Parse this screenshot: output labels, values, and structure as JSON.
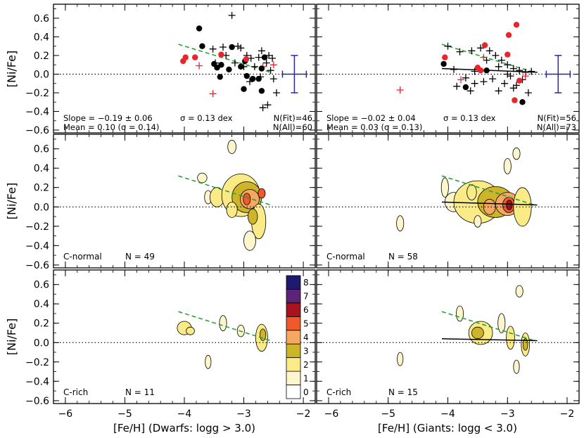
{
  "figure": {
    "xlabel_left": "[Fe/H] (Dwarfs: logg > 3.0)",
    "xlabel_right": "[Fe/H] (Giants: logg < 3.0)",
    "ylabel": "[Ni/Fe]",
    "x_ticks": [
      "−6",
      "−5",
      "−4",
      "−3",
      "−2"
    ],
    "y_ticks": [
      "−0.6",
      "−0.4",
      "−0.2",
      "0.0",
      "0.2",
      "0.4",
      "0.6"
    ],
    "colorbar_ticks": [
      "0",
      "1",
      "2",
      "3",
      "4",
      "5",
      "6",
      "7",
      "8"
    ]
  },
  "colors": {
    "black_points": "#000000",
    "red_points": "#e8242c",
    "fit_line_dashed": "#2e9e3a",
    "fit_line_solid": "#000000",
    "errorbar": "#2a2aa0",
    "levels": [
      "#ffffff",
      "#fdf6cc",
      "#fbeb86",
      "#cdb52a",
      "#f4a860",
      "#f05a2a",
      "#a8141e",
      "#5c2378",
      "#1e1a6e"
    ]
  },
  "chart_data": [
    {
      "panel": "top-left",
      "type": "scatter",
      "xlim": [
        -6.2,
        -1.8
      ],
      "ylim": [
        -0.63,
        0.75
      ],
      "stats_line1": "Slope = −0.19 ± 0.06",
      "stats_line1b": "σ = 0.13 dex",
      "stats_line2": "Mean =  0.10 (σ = 0.14)",
      "nfit": "N(Fit)=46",
      "nall": "N(All)=60",
      "fit_dashed": {
        "x": [
          -4.1,
          -2.55
        ],
        "y": [
          0.32,
          0.02
        ]
      },
      "errorbar": {
        "x": -2.15,
        "y": 0.0,
        "dx": 0.2,
        "dy": 0.2
      },
      "black_circles": [
        [
          -3.75,
          0.49
        ],
        [
          -3.7,
          0.3
        ],
        [
          -3.2,
          0.29
        ],
        [
          -3.5,
          0.11
        ],
        [
          -3.45,
          0.07
        ],
        [
          -3.38,
          0.1
        ],
        [
          -3.25,
          0.05
        ],
        [
          -3.05,
          0.08
        ],
        [
          -2.98,
          0.14
        ],
        [
          -2.95,
          -0.02
        ],
        [
          -2.85,
          -0.05
        ],
        [
          -2.7,
          0.06
        ],
        [
          -2.65,
          0.18
        ],
        [
          -2.75,
          -0.05
        ],
        [
          -3.0,
          -0.16
        ],
        [
          -2.7,
          -0.18
        ],
        [
          -3.4,
          -0.03
        ]
      ],
      "red_circles": [
        [
          -4.02,
          0.14
        ],
        [
          -3.98,
          0.18
        ],
        [
          -3.82,
          0.18
        ],
        [
          -3.38,
          0.21
        ],
        [
          -2.96,
          0.16
        ]
      ],
      "black_plus": [
        [
          -3.2,
          0.63
        ],
        [
          -3.1,
          0.3
        ],
        [
          -3.35,
          0.29
        ],
        [
          -3.52,
          0.27
        ],
        [
          -3.48,
          0.12
        ],
        [
          -3.3,
          0.2
        ],
        [
          -3.05,
          0.28
        ],
        [
          -2.95,
          0.2
        ],
        [
          -2.88,
          0.17
        ],
        [
          -2.82,
          0.08
        ],
        [
          -2.75,
          0.18
        ],
        [
          -2.7,
          0.25
        ],
        [
          -2.62,
          0.12
        ],
        [
          -2.58,
          0.2
        ],
        [
          -2.55,
          0.04
        ],
        [
          -2.5,
          -0.05
        ],
        [
          -2.45,
          -0.2
        ],
        [
          -2.6,
          -0.33
        ],
        [
          -2.68,
          -0.36
        ],
        [
          -2.52,
          0.17
        ],
        [
          -3.0,
          0.08
        ],
        [
          -3.15,
          0.12
        ],
        [
          -2.9,
          -0.08
        ],
        [
          -2.72,
          -0.03
        ]
      ],
      "red_plus": [
        [
          -3.75,
          0.09
        ],
        [
          -3.52,
          -0.21
        ],
        [
          -2.5,
          0.1
        ],
        [
          -2.68,
          0.08
        ]
      ]
    },
    {
      "panel": "top-right",
      "type": "scatter",
      "xlim": [
        -6.2,
        -1.8
      ],
      "ylim": [
        -0.63,
        0.75
      ],
      "stats_line1": "Slope = −0.02 ± 0.04",
      "stats_line1b": "σ = 0.13 dex",
      "stats_line2": "Mean =  0.03 (σ = 0.13)",
      "nfit": "N(Fit)=56",
      "nall": "N(All)=73",
      "fit_dashed": {
        "x": [
          -4.1,
          -2.55
        ],
        "y": [
          0.32,
          0.02
        ]
      },
      "fit_solid": {
        "x": [
          -4.1,
          -2.5
        ],
        "y": [
          0.06,
          0.02
        ]
      },
      "errorbar": {
        "x": -2.15,
        "y": 0.0,
        "dx": 0.2,
        "dy": 0.2
      },
      "black_circles": [
        [
          -4.07,
          0.11
        ],
        [
          -3.7,
          -0.14
        ],
        [
          -3.35,
          0.04
        ],
        [
          -2.75,
          -0.3
        ]
      ],
      "red_circles": [
        [
          -4.05,
          0.18
        ],
        [
          -3.5,
          0.07
        ],
        [
          -3.45,
          0.04
        ],
        [
          -3.38,
          0.31
        ],
        [
          -2.98,
          0.42
        ],
        [
          -3.0,
          0.21
        ],
        [
          -2.85,
          0.53
        ],
        [
          -2.8,
          -0.07
        ],
        [
          -2.88,
          -0.28
        ]
      ],
      "black_plus": [
        [
          -4.0,
          0.3
        ],
        [
          -3.8,
          0.24
        ],
        [
          -3.6,
          0.25
        ],
        [
          -3.45,
          0.28
        ],
        [
          -3.3,
          0.25
        ],
        [
          -3.2,
          0.2
        ],
        [
          -3.1,
          0.15
        ],
        [
          -3.0,
          0.1
        ],
        [
          -2.9,
          0.06
        ],
        [
          -2.8,
          0.04
        ],
        [
          -2.7,
          0.02
        ],
        [
          -2.6,
          0.03
        ],
        [
          -3.85,
          -0.13
        ],
        [
          -3.7,
          -0.04
        ],
        [
          -3.55,
          -0.1
        ],
        [
          -3.4,
          -0.08
        ],
        [
          -3.25,
          -0.05
        ],
        [
          -3.15,
          -0.18
        ],
        [
          -3.05,
          -0.1
        ],
        [
          -2.95,
          -0.02
        ],
        [
          -2.85,
          -0.12
        ],
        [
          -2.75,
          -0.06
        ],
        [
          -2.65,
          -0.2
        ],
        [
          -3.55,
          0.03
        ],
        [
          -3.35,
          0.15
        ],
        [
          -3.15,
          0.08
        ],
        [
          -3.0,
          0.0
        ],
        [
          -2.9,
          -0.15
        ],
        [
          -3.9,
          0.05
        ],
        [
          -3.62,
          -0.18
        ]
      ],
      "red_plus": [
        [
          -4.8,
          -0.17
        ],
        [
          -3.78,
          -0.06
        ],
        [
          -3.4,
          0.18
        ],
        [
          -2.7,
          -0.02
        ]
      ]
    },
    {
      "panel": "middle-left",
      "type": "heatmap",
      "label": "C-normal",
      "count": "N = 49",
      "xlim": [
        -6.2,
        -1.8
      ],
      "ylim": [
        -0.63,
        0.75
      ],
      "fit_dashed": {
        "x": [
          -4.1,
          -2.55
        ],
        "y": [
          0.32,
          0.02
        ]
      },
      "blobs": [
        [
          -3.2,
          0.62,
          0.07,
          0.07,
          1
        ],
        [
          -3.7,
          0.3,
          0.08,
          0.05,
          1
        ],
        [
          -3.6,
          0.1,
          0.06,
          0.07,
          1
        ],
        [
          -3.45,
          0.1,
          0.12,
          0.1,
          2
        ],
        [
          -3.05,
          0.12,
          0.32,
          0.22,
          2
        ],
        [
          -2.95,
          0.1,
          0.25,
          0.16,
          3
        ],
        [
          -2.9,
          0.08,
          0.16,
          0.1,
          4
        ],
        [
          -2.95,
          0.08,
          0.06,
          0.06,
          5
        ],
        [
          -2.7,
          0.14,
          0.06,
          0.05,
          5
        ],
        [
          -2.75,
          -0.15,
          0.12,
          0.18,
          2
        ],
        [
          -2.85,
          -0.1,
          0.08,
          0.08,
          3
        ],
        [
          -2.9,
          -0.35,
          0.1,
          0.1,
          1
        ],
        [
          -3.2,
          -0.03,
          0.09,
          0.08,
          2
        ]
      ]
    },
    {
      "panel": "middle-right",
      "type": "heatmap",
      "label": "C-normal",
      "count": "N = 58",
      "xlim": [
        -6.2,
        -1.8
      ],
      "ylim": [
        -0.63,
        0.75
      ],
      "fit_dashed": {
        "x": [
          -4.1,
          -2.55
        ],
        "y": [
          0.32,
          0.02
        ]
      },
      "fit_solid": {
        "x": [
          -4.1,
          -2.5
        ],
        "y": [
          0.05,
          0.02
        ]
      },
      "blobs": [
        [
          -4.05,
          0.2,
          0.06,
          0.1,
          1
        ],
        [
          -3.9,
          0.05,
          0.15,
          0.1,
          1
        ],
        [
          -3.5,
          0.05,
          0.4,
          0.22,
          2
        ],
        [
          -3.2,
          0.05,
          0.3,
          0.16,
          3
        ],
        [
          -3.0,
          0.03,
          0.2,
          0.12,
          4
        ],
        [
          -2.98,
          0.02,
          0.1,
          0.08,
          5
        ],
        [
          -2.97,
          0.02,
          0.05,
          0.05,
          6
        ],
        [
          -3.3,
          0.0,
          0.1,
          0.08,
          4
        ],
        [
          -3.6,
          0.15,
          0.08,
          0.08,
          2
        ],
        [
          -2.75,
          0.0,
          0.15,
          0.2,
          2
        ],
        [
          -3.0,
          0.42,
          0.06,
          0.08,
          1
        ],
        [
          -2.85,
          0.55,
          0.06,
          0.06,
          1
        ],
        [
          -4.8,
          -0.17,
          0.06,
          0.08,
          1
        ],
        [
          -3.5,
          -0.15,
          0.06,
          0.06,
          1
        ]
      ]
    },
    {
      "panel": "bottom-left",
      "type": "heatmap",
      "label": "C-rich",
      "count": "N = 11",
      "xlim": [
        -6.2,
        -1.8
      ],
      "ylim": [
        -0.63,
        0.75
      ],
      "fit_dashed": {
        "x": [
          -4.1,
          -2.55
        ],
        "y": [
          0.32,
          0.02
        ]
      },
      "blobs": [
        [
          -4.0,
          0.15,
          0.12,
          0.07,
          2
        ],
        [
          -3.9,
          0.12,
          0.07,
          0.04,
          2
        ],
        [
          -3.35,
          0.2,
          0.06,
          0.08,
          1
        ],
        [
          -3.05,
          0.12,
          0.06,
          0.06,
          1
        ],
        [
          -2.7,
          0.05,
          0.1,
          0.14,
          2
        ],
        [
          -2.68,
          0.08,
          0.05,
          0.06,
          3
        ],
        [
          -3.6,
          -0.2,
          0.05,
          0.07,
          1
        ]
      ]
    },
    {
      "panel": "bottom-right",
      "type": "heatmap",
      "label": "C-rich",
      "count": "N = 15",
      "xlim": [
        -6.2,
        -1.8
      ],
      "ylim": [
        -0.63,
        0.75
      ],
      "fit_dashed": {
        "x": [
          -4.1,
          -2.55
        ],
        "y": [
          0.32,
          0.02
        ]
      },
      "fit_solid": {
        "x": [
          -4.1,
          -2.5
        ],
        "y": [
          0.04,
          0.02
        ]
      },
      "blobs": [
        [
          -3.8,
          0.3,
          0.06,
          0.08,
          1
        ],
        [
          -3.45,
          0.1,
          0.2,
          0.12,
          2
        ],
        [
          -3.5,
          0.1,
          0.1,
          0.06,
          3
        ],
        [
          -3.1,
          0.2,
          0.06,
          0.1,
          1
        ],
        [
          -2.95,
          0.05,
          0.07,
          0.12,
          2
        ],
        [
          -2.8,
          0.53,
          0.06,
          0.06,
          1
        ],
        [
          -2.7,
          -0.02,
          0.07,
          0.12,
          2
        ],
        [
          -2.7,
          -0.02,
          0.04,
          0.06,
          3
        ],
        [
          -2.85,
          -0.25,
          0.05,
          0.07,
          1
        ],
        [
          -4.8,
          -0.17,
          0.05,
          0.07,
          1
        ]
      ]
    }
  ]
}
